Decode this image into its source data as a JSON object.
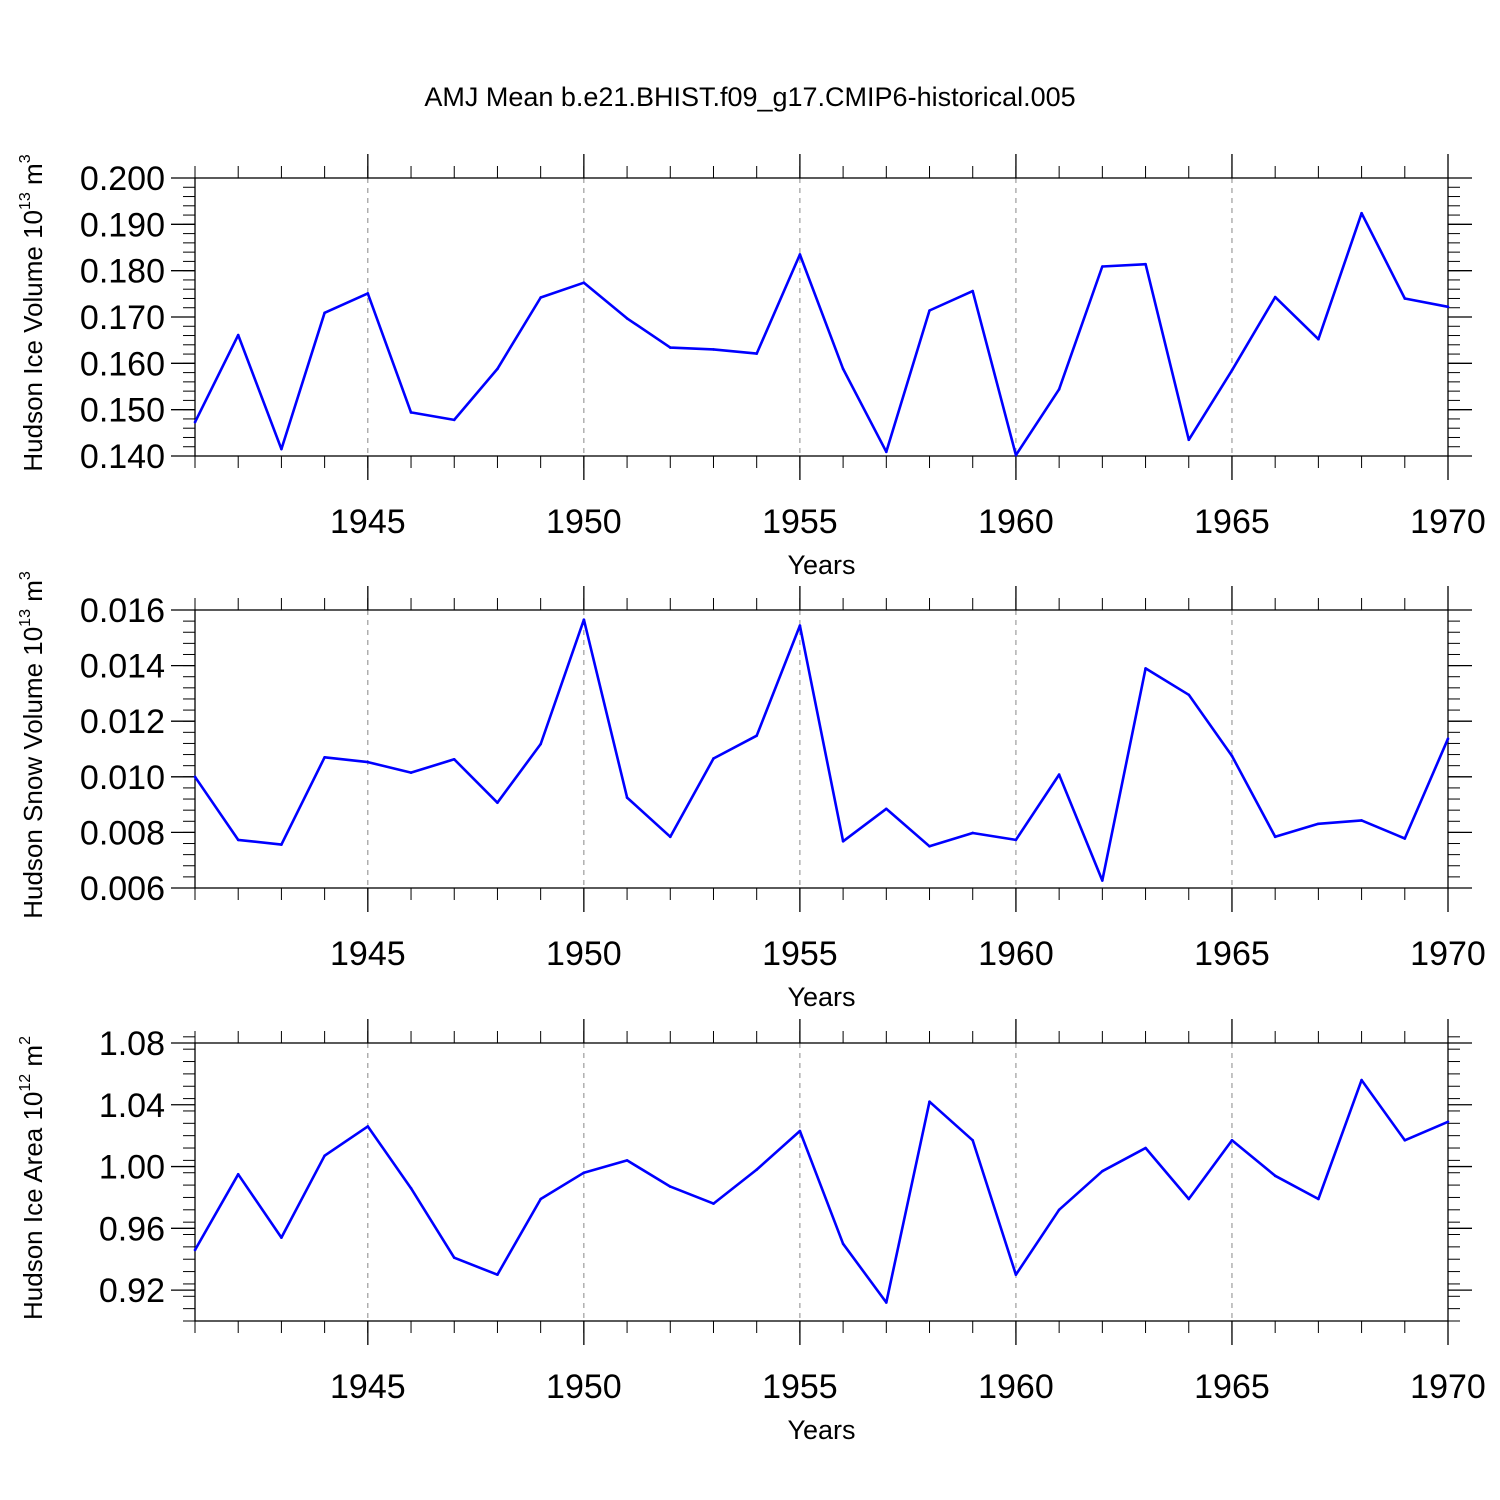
{
  "title": "AMJ Mean b.e21.BHIST.f09_g17.CMIP6-historical.005",
  "colors": {
    "line": "#0000ff",
    "axis": "#000000",
    "grid": "#888888",
    "background": "#ffffff"
  },
  "chart_data": [
    {
      "type": "line",
      "panel": "top",
      "ylabel": {
        "text": "Hudson Ice Volume 10",
        "sup": "13",
        "unit": " m",
        "unit_sup": "3"
      },
      "xlabel": "Years",
      "xlim": [
        1941,
        1970
      ],
      "ylim": [
        0.14,
        0.2
      ],
      "y_ticks": [
        0.14,
        0.15,
        0.16,
        0.17,
        0.18,
        0.19,
        0.2
      ],
      "y_tick_labels": [
        "0.140",
        "0.150",
        "0.160",
        "0.170",
        "0.180",
        "0.190",
        "0.200"
      ],
      "x_ticks": [
        1945,
        1950,
        1955,
        1960,
        1965,
        1970
      ],
      "x_tick_labels": [
        "1945",
        "1950",
        "1955",
        "1960",
        "1965",
        "1970"
      ],
      "grid": "vertical dashed at labeled years",
      "x": [
        1941,
        1942,
        1943,
        1944,
        1945,
        1946,
        1947,
        1948,
        1949,
        1950,
        1951,
        1952,
        1953,
        1954,
        1955,
        1956,
        1957,
        1958,
        1959,
        1960,
        1961,
        1962,
        1963,
        1964,
        1965,
        1966,
        1967,
        1968,
        1969,
        1970
      ],
      "series": [
        {
          "name": "Hudson Ice Volume",
          "values": [
            0.1473,
            0.1661,
            0.1415,
            0.1709,
            0.1751,
            0.1494,
            0.1478,
            0.1588,
            0.1742,
            0.1774,
            0.1697,
            0.1634,
            0.163,
            0.1621,
            0.1835,
            0.1588,
            0.1409,
            0.1714,
            0.1756,
            0.1402,
            0.1544,
            0.1809,
            0.1814,
            0.1435,
            0.1585,
            0.1743,
            0.1652,
            0.1924,
            0.174,
            0.1722
          ]
        }
      ]
    },
    {
      "type": "line",
      "panel": "middle",
      "ylabel": {
        "text": "Hudson Snow Volume 10",
        "sup": "13",
        "unit": " m",
        "unit_sup": "3"
      },
      "xlabel": "Years",
      "xlim": [
        1941,
        1970
      ],
      "ylim": [
        0.006,
        0.016
      ],
      "y_ticks": [
        0.006,
        0.008,
        0.01,
        0.012,
        0.014,
        0.016
      ],
      "y_tick_labels": [
        "0.006",
        "0.008",
        "0.010",
        "0.012",
        "0.014",
        "0.016"
      ],
      "x_ticks": [
        1945,
        1950,
        1955,
        1960,
        1965,
        1970
      ],
      "x_tick_labels": [
        "1945",
        "1950",
        "1955",
        "1960",
        "1965",
        "1970"
      ],
      "grid": "vertical dashed at labeled years",
      "x": [
        1941,
        1942,
        1943,
        1944,
        1945,
        1946,
        1947,
        1948,
        1949,
        1950,
        1951,
        1952,
        1953,
        1954,
        1955,
        1956,
        1957,
        1958,
        1959,
        1960,
        1961,
        1962,
        1963,
        1964,
        1965,
        1966,
        1967,
        1968,
        1969,
        1970
      ],
      "series": [
        {
          "name": "Hudson Snow Volume",
          "values": [
            0.01,
            0.00773,
            0.00756,
            0.0107,
            0.01053,
            0.01015,
            0.01063,
            0.00907,
            0.01118,
            0.01565,
            0.00925,
            0.00784,
            0.01066,
            0.01148,
            0.01544,
            0.00768,
            0.00885,
            0.0075,
            0.00798,
            0.00773,
            0.01008,
            0.00627,
            0.0139,
            0.01295,
            0.01075,
            0.00784,
            0.00831,
            0.00843,
            0.00778,
            0.01137
          ]
        }
      ]
    },
    {
      "type": "line",
      "panel": "bottom",
      "ylabel": {
        "text": "Hudson Ice Area 10",
        "sup": "12",
        "unit": " m",
        "unit_sup": "2"
      },
      "xlabel": "Years",
      "xlim": [
        1941,
        1970
      ],
      "ylim": [
        0.9,
        1.08
      ],
      "y_ticks": [
        0.92,
        0.96,
        1.0,
        1.04,
        1.08
      ],
      "y_tick_labels": [
        "0.92",
        "0.96",
        "1.00",
        "1.04",
        "1.08"
      ],
      "x_ticks": [
        1945,
        1950,
        1955,
        1960,
        1965,
        1970
      ],
      "x_tick_labels": [
        "1945",
        "1950",
        "1955",
        "1960",
        "1965",
        "1970"
      ],
      "grid": "vertical dashed at labeled years",
      "x": [
        1941,
        1942,
        1943,
        1944,
        1945,
        1946,
        1947,
        1948,
        1949,
        1950,
        1951,
        1952,
        1953,
        1954,
        1955,
        1956,
        1957,
        1958,
        1959,
        1960,
        1961,
        1962,
        1963,
        1964,
        1965,
        1966,
        1967,
        1968,
        1969,
        1970
      ],
      "series": [
        {
          "name": "Hudson Ice Area",
          "values": [
            0.946,
            0.995,
            0.954,
            1.007,
            1.026,
            0.986,
            0.941,
            0.93,
            0.979,
            0.996,
            1.004,
            0.987,
            0.976,
            0.998,
            1.023,
            0.95,
            0.912,
            1.042,
            1.017,
            0.93,
            0.972,
            0.997,
            1.012,
            0.979,
            1.017,
            0.994,
            0.979,
            1.056,
            1.017,
            1.029
          ]
        }
      ]
    }
  ]
}
